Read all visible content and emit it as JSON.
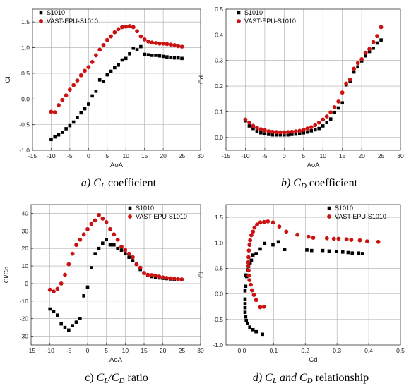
{
  "colors": {
    "s1010": "#000000",
    "vast": "#cc1111"
  },
  "chart_data": [
    {
      "type": "scatter",
      "panel": "a",
      "caption": {
        "prefix": "a) ",
        "main": "C",
        "sub": "L",
        "suffix": " coefficient"
      },
      "xlabel": "AoA",
      "ylabel": "Cl",
      "xlim": [
        -15,
        30
      ],
      "ylim": [
        -1.0,
        1.75
      ],
      "xticks": [
        "-15",
        "-10",
        "-5",
        "0",
        "5",
        "10",
        "15",
        "20",
        "25",
        "30"
      ],
      "yticks": [
        "-1.0",
        "-0.5",
        "0.0",
        "0.5",
        "1.0",
        "1.5"
      ],
      "grid": true,
      "legend": "top-left",
      "series": [
        {
          "name": "S1010",
          "marker": "square",
          "x": [
            -10,
            -9,
            -8,
            -7,
            -6,
            -5,
            -4,
            -3,
            -2,
            -1,
            0,
            1,
            2,
            3,
            4,
            5,
            6,
            7,
            8,
            9,
            10,
            11,
            12,
            13,
            14,
            15,
            16,
            17,
            18,
            19,
            20,
            21,
            22,
            23,
            24,
            25
          ],
          "y": [
            -0.79,
            -0.74,
            -0.7,
            -0.65,
            -0.58,
            -0.52,
            -0.45,
            -0.36,
            -0.27,
            -0.19,
            -0.1,
            0.06,
            0.15,
            0.37,
            0.34,
            0.47,
            0.54,
            0.61,
            0.66,
            0.76,
            0.79,
            0.88,
            0.99,
            0.96,
            1.02,
            0.87,
            0.86,
            0.85,
            0.85,
            0.84,
            0.83,
            0.82,
            0.81,
            0.8,
            0.8,
            0.79
          ]
        },
        {
          "name": "VAST-EPU-S1010",
          "marker": "circle",
          "x": [
            -10,
            -9,
            -8,
            -7,
            -6,
            -5,
            -4,
            -3,
            -2,
            -1,
            0,
            1,
            2,
            3,
            4,
            5,
            6,
            7,
            8,
            9,
            10,
            11,
            12,
            13,
            14,
            15,
            16,
            17,
            18,
            19,
            20,
            21,
            22,
            23,
            24,
            25
          ],
          "y": [
            -0.25,
            -0.26,
            -0.12,
            -0.02,
            0.07,
            0.18,
            0.27,
            0.36,
            0.46,
            0.55,
            0.62,
            0.72,
            0.85,
            0.96,
            1.05,
            1.15,
            1.22,
            1.3,
            1.36,
            1.4,
            1.41,
            1.42,
            1.4,
            1.32,
            1.22,
            1.16,
            1.12,
            1.1,
            1.09,
            1.08,
            1.08,
            1.07,
            1.06,
            1.05,
            1.03,
            1.02
          ]
        }
      ]
    },
    {
      "type": "scatter",
      "panel": "b",
      "caption": {
        "prefix": "b) ",
        "main": "C",
        "sub": "D",
        "suffix": " coefficient"
      },
      "xlabel": "AoA",
      "ylabel": "Cd",
      "xlim": [
        -15,
        30
      ],
      "ylim": [
        -0.05,
        0.5
      ],
      "xticks": [
        "-15",
        "-10",
        "-5",
        "0",
        "5",
        "10",
        "15",
        "20",
        "25",
        "30"
      ],
      "yticks": [
        "0.0",
        "0.1",
        "0.2",
        "0.3",
        "0.4",
        "0.5"
      ],
      "grid": true,
      "legend": "top-left",
      "series": [
        {
          "name": "S1010",
          "marker": "square",
          "x": [
            -10,
            -9,
            -8,
            -7,
            -6,
            -5,
            -4,
            -3,
            -2,
            -1,
            0,
            1,
            2,
            3,
            4,
            5,
            6,
            7,
            8,
            9,
            10,
            11,
            12,
            13,
            14,
            15,
            16,
            17,
            18,
            19,
            20,
            21,
            22,
            23,
            24,
            25
          ],
          "y": [
            0.065,
            0.045,
            0.035,
            0.025,
            0.018,
            0.014,
            0.012,
            0.01,
            0.01,
            0.01,
            0.01,
            0.01,
            0.012,
            0.013,
            0.015,
            0.018,
            0.021,
            0.026,
            0.03,
            0.035,
            0.045,
            0.058,
            0.072,
            0.098,
            0.115,
            0.135,
            0.205,
            0.22,
            0.255,
            0.275,
            0.298,
            0.318,
            0.335,
            0.348,
            0.368,
            0.38
          ]
        },
        {
          "name": "VAST-EPU-S1010",
          "marker": "circle",
          "x": [
            -10,
            -9,
            -8,
            -7,
            -6,
            -5,
            -4,
            -3,
            -2,
            -1,
            0,
            1,
            2,
            3,
            4,
            5,
            6,
            7,
            8,
            9,
            10,
            11,
            12,
            13,
            14,
            15,
            16,
            17,
            18,
            19,
            20,
            21,
            22,
            23,
            24,
            25
          ],
          "y": [
            0.07,
            0.058,
            0.045,
            0.038,
            0.032,
            0.028,
            0.024,
            0.022,
            0.021,
            0.02,
            0.02,
            0.021,
            0.022,
            0.024,
            0.026,
            0.03,
            0.035,
            0.04,
            0.048,
            0.058,
            0.07,
            0.082,
            0.098,
            0.118,
            0.14,
            0.175,
            0.21,
            0.225,
            0.268,
            0.29,
            0.305,
            0.33,
            0.345,
            0.372,
            0.395,
            0.43
          ]
        }
      ]
    },
    {
      "type": "scatter",
      "panel": "c",
      "caption": {
        "prefix": "c) ",
        "main": "C",
        "sub": "L",
        "mid": "/C",
        "sub2": "D",
        "suffix": " ratio"
      },
      "xlabel": "AoA",
      "ylabel": "Cl/Cd",
      "xlim": [
        -15,
        30
      ],
      "ylim": [
        -35,
        45
      ],
      "xticks": [
        "-15",
        "-10",
        "-5",
        "0",
        "5",
        "10",
        "15",
        "20",
        "25",
        "30"
      ],
      "yticks": [
        "-30",
        "-20",
        "-10",
        "0",
        "10",
        "20",
        "30",
        "40"
      ],
      "grid": true,
      "legend": "top-right",
      "series": [
        {
          "name": "S1010",
          "marker": "square",
          "x": [
            -10,
            -9,
            -8,
            -7,
            -6,
            -5,
            -4,
            -3,
            -2,
            -1,
            0,
            1,
            2,
            3,
            4,
            5,
            6,
            7,
            8,
            9,
            10,
            11,
            12,
            13,
            14,
            15,
            16,
            17,
            18,
            19,
            20,
            21,
            22,
            23,
            24,
            25
          ],
          "y": [
            -14.5,
            -16,
            -18,
            -23,
            -25,
            -26.5,
            -24,
            -22,
            -20,
            -7,
            -2,
            9,
            17,
            20,
            23,
            25,
            22,
            22,
            20,
            19,
            17,
            15,
            13,
            11,
            8,
            6,
            4.5,
            4,
            3.5,
            3.2,
            3,
            2.8,
            2.6,
            2.4,
            2.2,
            2.1
          ]
        },
        {
          "name": "VAST-EPU-S1010",
          "marker": "circle",
          "x": [
            -10,
            -9,
            -8,
            -7,
            -6,
            -5,
            -4,
            -3,
            -2,
            -1,
            0,
            1,
            2,
            3,
            4,
            5,
            6,
            7,
            8,
            9,
            10,
            11,
            12,
            13,
            14,
            15,
            16,
            17,
            18,
            19,
            20,
            21,
            22,
            23,
            24,
            25
          ],
          "y": [
            -3.5,
            -4.5,
            -3,
            0,
            5,
            11,
            17,
            22,
            25,
            28,
            31,
            34,
            36,
            39,
            37,
            35,
            31,
            28,
            25,
            21,
            19,
            17,
            15,
            11,
            9,
            6,
            5,
            4.8,
            4.5,
            4,
            3.5,
            3.2,
            3,
            2.8,
            2.5,
            2.4
          ]
        }
      ]
    },
    {
      "type": "scatter",
      "panel": "d",
      "caption": {
        "prefix": "d) ",
        "main": "C",
        "sub": "L",
        "mid": " and C",
        "sub2": "D",
        "suffix": " relationship"
      },
      "xlabel": "Cd",
      "ylabel": "Cl",
      "xlim": [
        -0.05,
        0.5
      ],
      "ylim": [
        -1.0,
        1.75
      ],
      "xticks": [
        "0.0",
        "0.1",
        "0.2",
        "0.3",
        "0.4",
        "0.5"
      ],
      "yticks": [
        "-1.0",
        "-0.5",
        "0.0",
        "0.5",
        "1.0",
        "1.5"
      ],
      "grid": true,
      "legend": "top-right",
      "series": [
        {
          "name": "S1010",
          "marker": "square",
          "x": [
            0.065,
            0.045,
            0.035,
            0.025,
            0.018,
            0.014,
            0.012,
            0.01,
            0.01,
            0.01,
            0.01,
            0.01,
            0.012,
            0.013,
            0.015,
            0.018,
            0.021,
            0.026,
            0.03,
            0.035,
            0.045,
            0.058,
            0.072,
            0.098,
            0.115,
            0.135,
            0.205,
            0.22,
            0.255,
            0.275,
            0.298,
            0.318,
            0.335,
            0.348,
            0.368,
            0.38
          ],
          "y": [
            -0.79,
            -0.74,
            -0.7,
            -0.65,
            -0.58,
            -0.52,
            -0.45,
            -0.36,
            -0.27,
            -0.19,
            -0.1,
            0.06,
            0.15,
            0.37,
            0.34,
            0.47,
            0.54,
            0.61,
            0.66,
            0.76,
            0.79,
            0.88,
            0.99,
            0.96,
            1.02,
            0.87,
            0.86,
            0.85,
            0.85,
            0.84,
            0.83,
            0.82,
            0.81,
            0.8,
            0.8,
            0.79
          ]
        },
        {
          "name": "VAST-EPU-S1010",
          "marker": "circle",
          "x": [
            0.07,
            0.058,
            0.045,
            0.038,
            0.032,
            0.028,
            0.024,
            0.022,
            0.021,
            0.02,
            0.02,
            0.021,
            0.022,
            0.024,
            0.026,
            0.03,
            0.035,
            0.04,
            0.048,
            0.058,
            0.07,
            0.082,
            0.098,
            0.118,
            0.14,
            0.175,
            0.21,
            0.225,
            0.268,
            0.29,
            0.305,
            0.33,
            0.345,
            0.372,
            0.395,
            0.43
          ],
          "y": [
            -0.25,
            -0.26,
            -0.12,
            -0.02,
            0.07,
            0.18,
            0.27,
            0.36,
            0.46,
            0.55,
            0.62,
            0.72,
            0.85,
            0.96,
            1.05,
            1.15,
            1.22,
            1.3,
            1.36,
            1.4,
            1.41,
            1.42,
            1.4,
            1.32,
            1.22,
            1.16,
            1.12,
            1.1,
            1.09,
            1.08,
            1.08,
            1.07,
            1.06,
            1.05,
            1.03,
            1.02
          ]
        }
      ]
    }
  ]
}
